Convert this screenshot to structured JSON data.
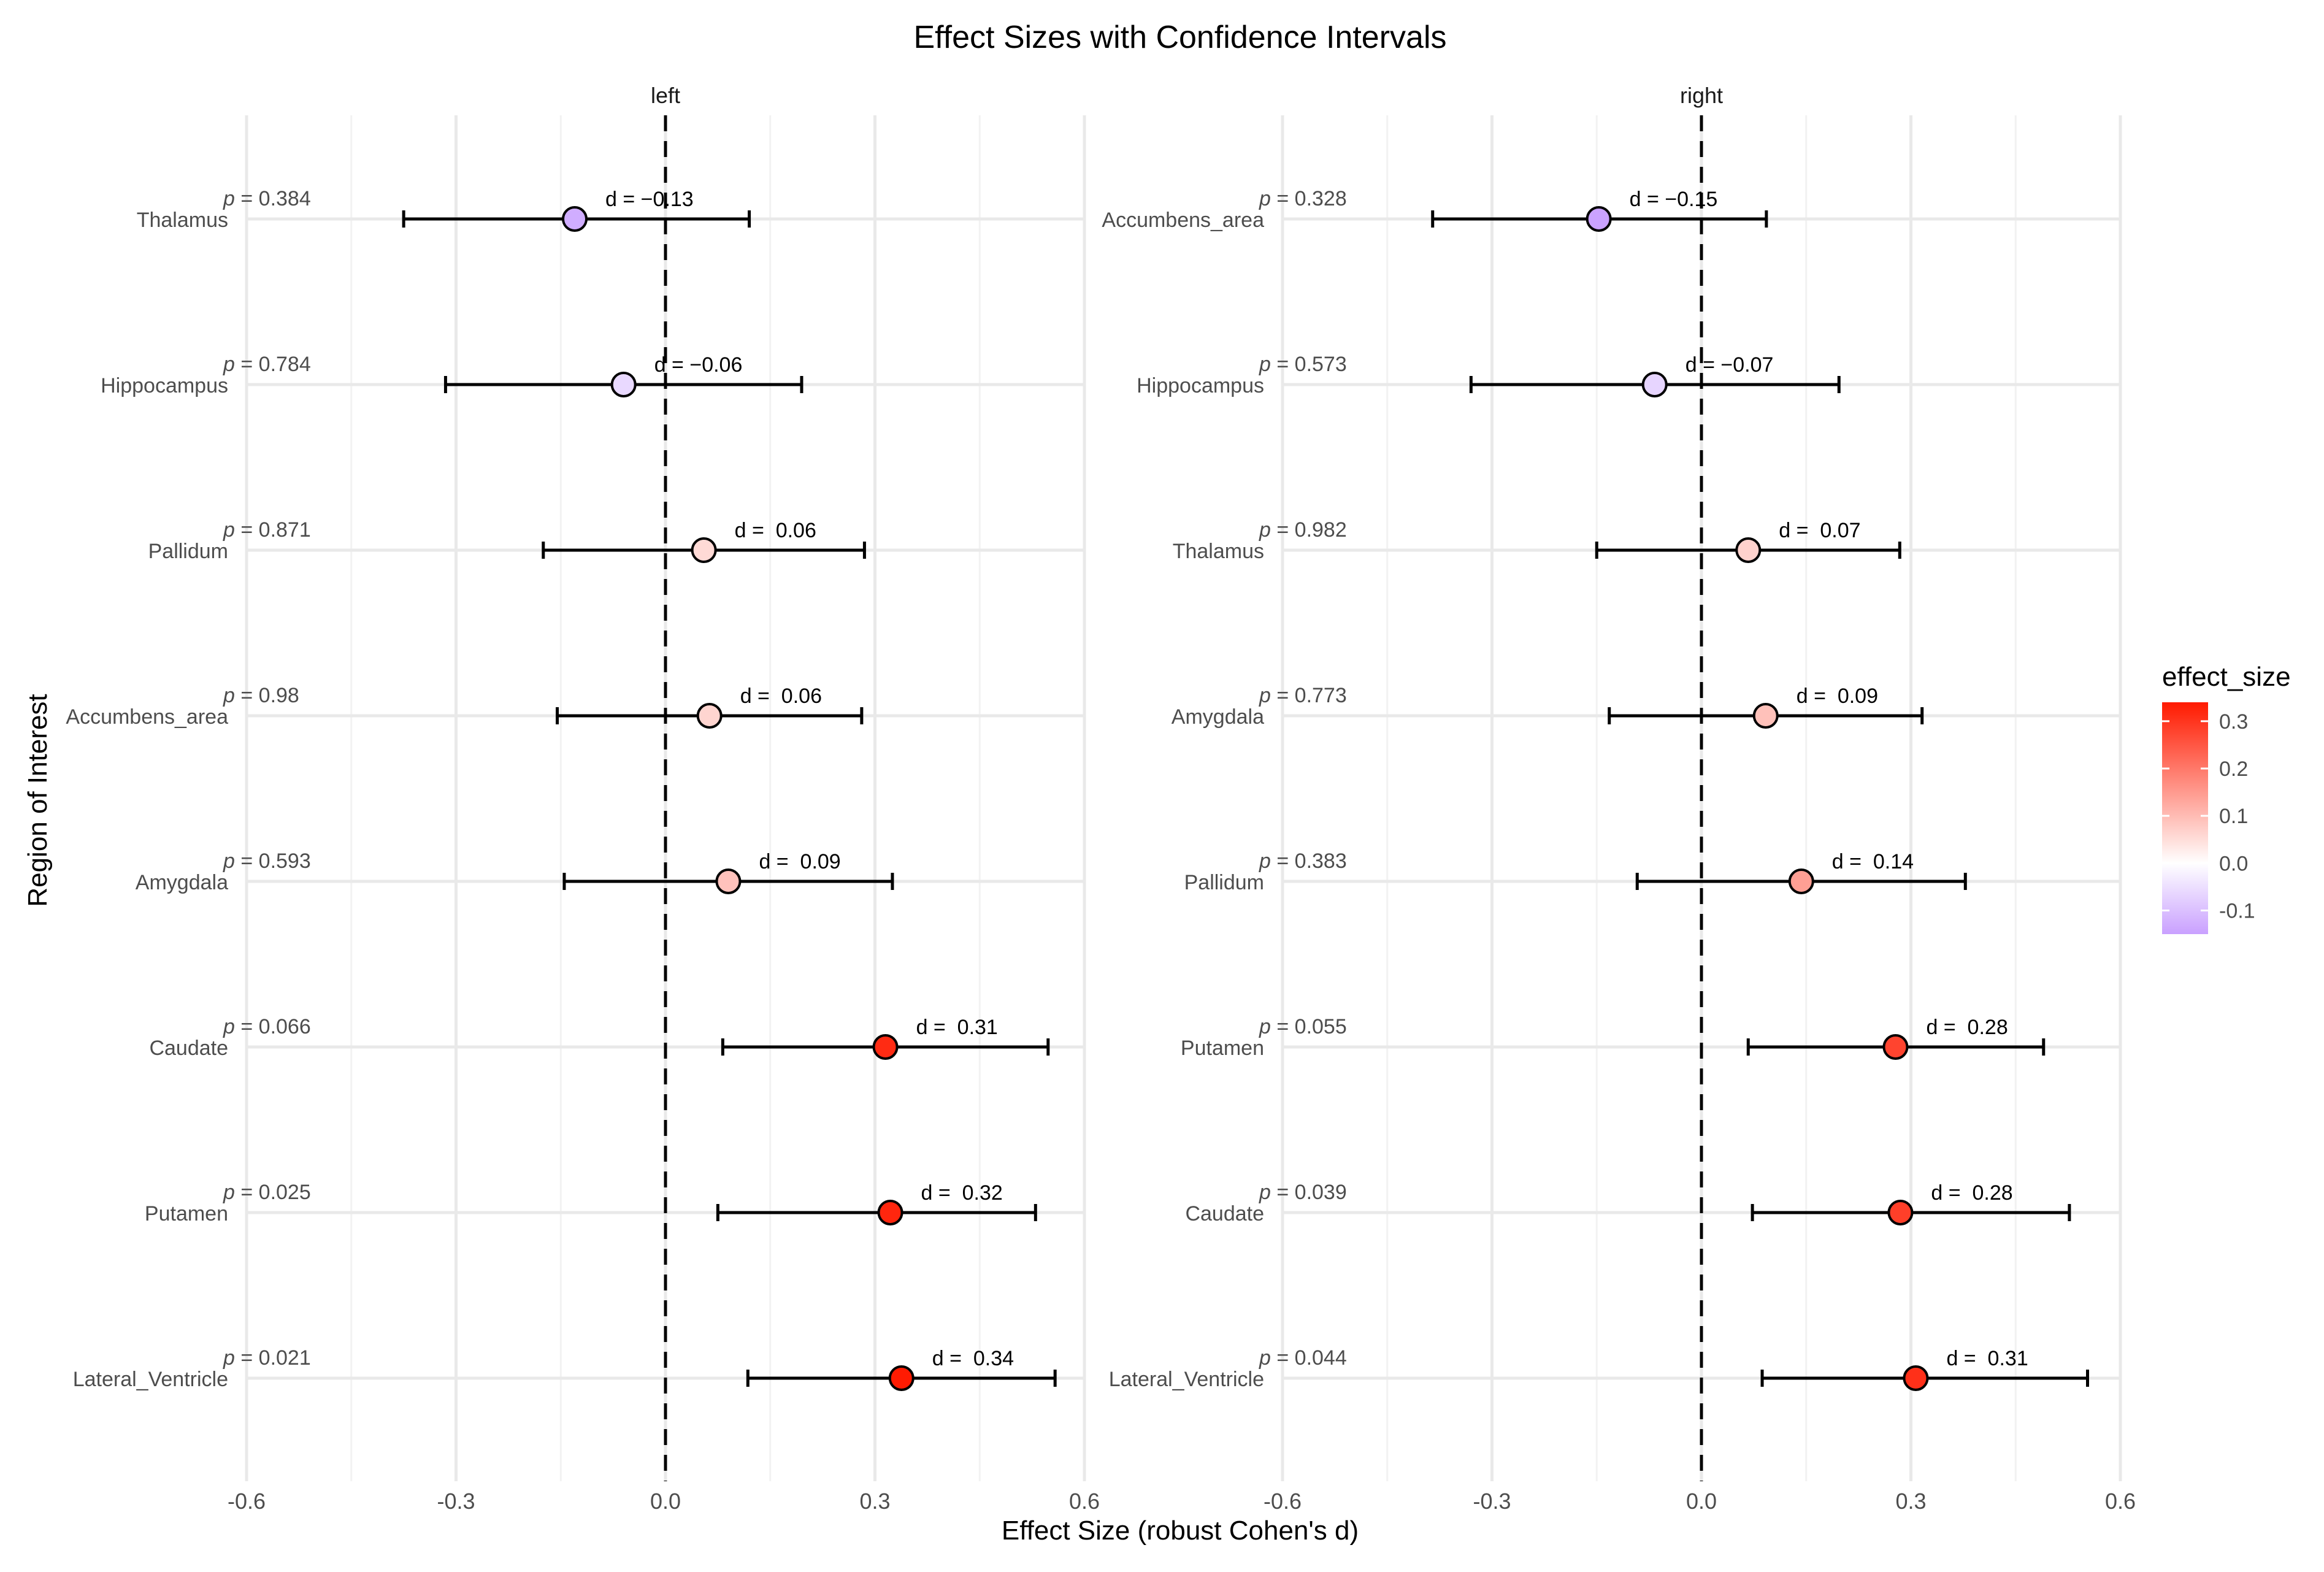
{
  "chart_data": {
    "type": "forest",
    "title": "Effect Sizes with Confidence Intervals",
    "xlabel": "Effect Size (robust Cohen's d)",
    "ylabel": "Region of Interest",
    "xlim": [
      -0.6,
      0.6
    ],
    "xticks": [
      -0.6,
      -0.3,
      0.0,
      0.3,
      0.6
    ],
    "xtick_labels": [
      "-0.6",
      "-0.3",
      "0.0",
      "0.3",
      "0.6"
    ],
    "reference_line": 0,
    "panels": [
      {
        "label": "left",
        "rows": [
          {
            "region": "Thalamus",
            "d": -0.13,
            "lo": -0.375,
            "hi": 0.12,
            "p_label": "p",
            "p_value": "= 0.384",
            "d_label": "d = −0.13"
          },
          {
            "region": "Hippocampus",
            "d": -0.06,
            "lo": -0.315,
            "hi": 0.195,
            "p_label": "p",
            "p_value": "= 0.784",
            "d_label": "d = −0.06"
          },
          {
            "region": "Pallidum",
            "d": 0.055,
            "lo": -0.175,
            "hi": 0.285,
            "p_label": "p",
            "p_value": "= 0.871",
            "d_label": "d =  0.06"
          },
          {
            "region": "Accumbens_area",
            "d": 0.063,
            "lo": -0.155,
            "hi": 0.281,
            "p_label": "p",
            "p_value": "= 0.98",
            "d_label": "d =  0.06"
          },
          {
            "region": "Amygdala",
            "d": 0.09,
            "lo": -0.145,
            "hi": 0.325,
            "p_label": "p",
            "p_value": "= 0.593",
            "d_label": "d =  0.09"
          },
          {
            "region": "Caudate",
            "d": 0.315,
            "lo": 0.082,
            "hi": 0.548,
            "p_label": "p",
            "p_value": "= 0.066",
            "d_label": "d =  0.31"
          },
          {
            "region": "Putamen",
            "d": 0.322,
            "lo": 0.075,
            "hi": 0.53,
            "p_label": "p",
            "p_value": "= 0.025",
            "d_label": "d =  0.32"
          },
          {
            "region": "Lateral_Ventricle",
            "d": 0.338,
            "lo": 0.118,
            "hi": 0.558,
            "p_label": "p",
            "p_value": "= 0.021",
            "d_label": "d =  0.34"
          }
        ]
      },
      {
        "label": "right",
        "rows": [
          {
            "region": "Accumbens_area",
            "d": -0.147,
            "lo": -0.385,
            "hi": 0.093,
            "p_label": "p",
            "p_value": "= 0.328",
            "d_label": "d = −0.15"
          },
          {
            "region": "Hippocampus",
            "d": -0.067,
            "lo": -0.33,
            "hi": 0.197,
            "p_label": "p",
            "p_value": "= 0.573",
            "d_label": "d = −0.07"
          },
          {
            "region": "Thalamus",
            "d": 0.067,
            "lo": -0.15,
            "hi": 0.284,
            "p_label": "p",
            "p_value": "= 0.982",
            "d_label": "d =  0.07"
          },
          {
            "region": "Amygdala",
            "d": 0.092,
            "lo": -0.132,
            "hi": 0.316,
            "p_label": "p",
            "p_value": "= 0.773",
            "d_label": "d =  0.09"
          },
          {
            "region": "Pallidum",
            "d": 0.143,
            "lo": -0.092,
            "hi": 0.378,
            "p_label": "p",
            "p_value": "= 0.383",
            "d_label": "d =  0.14"
          },
          {
            "region": "Putamen",
            "d": 0.278,
            "lo": 0.067,
            "hi": 0.49,
            "p_label": "p",
            "p_value": "= 0.055",
            "d_label": "d =  0.28"
          },
          {
            "region": "Caudate",
            "d": 0.285,
            "lo": 0.073,
            "hi": 0.527,
            "p_label": "p",
            "p_value": "= 0.039",
            "d_label": "d =  0.28"
          },
          {
            "region": "Lateral_Ventricle",
            "d": 0.307,
            "lo": 0.087,
            "hi": 0.553,
            "p_label": "p",
            "p_value": "= 0.044",
            "d_label": "d =  0.31"
          }
        ]
      }
    ],
    "legend": {
      "title": "effect_size",
      "position": "right",
      "ticks": [
        0.3,
        0.2,
        0.1,
        0.0,
        -0.1
      ],
      "tick_labels": [
        "0.3",
        "0.2",
        "0.1",
        "0.0",
        "-0.1"
      ],
      "range": [
        -0.15,
        0.34
      ],
      "color_low": "#c9a0ff",
      "color_mid": "#ffffff",
      "color_high": "#ff1a00"
    }
  }
}
